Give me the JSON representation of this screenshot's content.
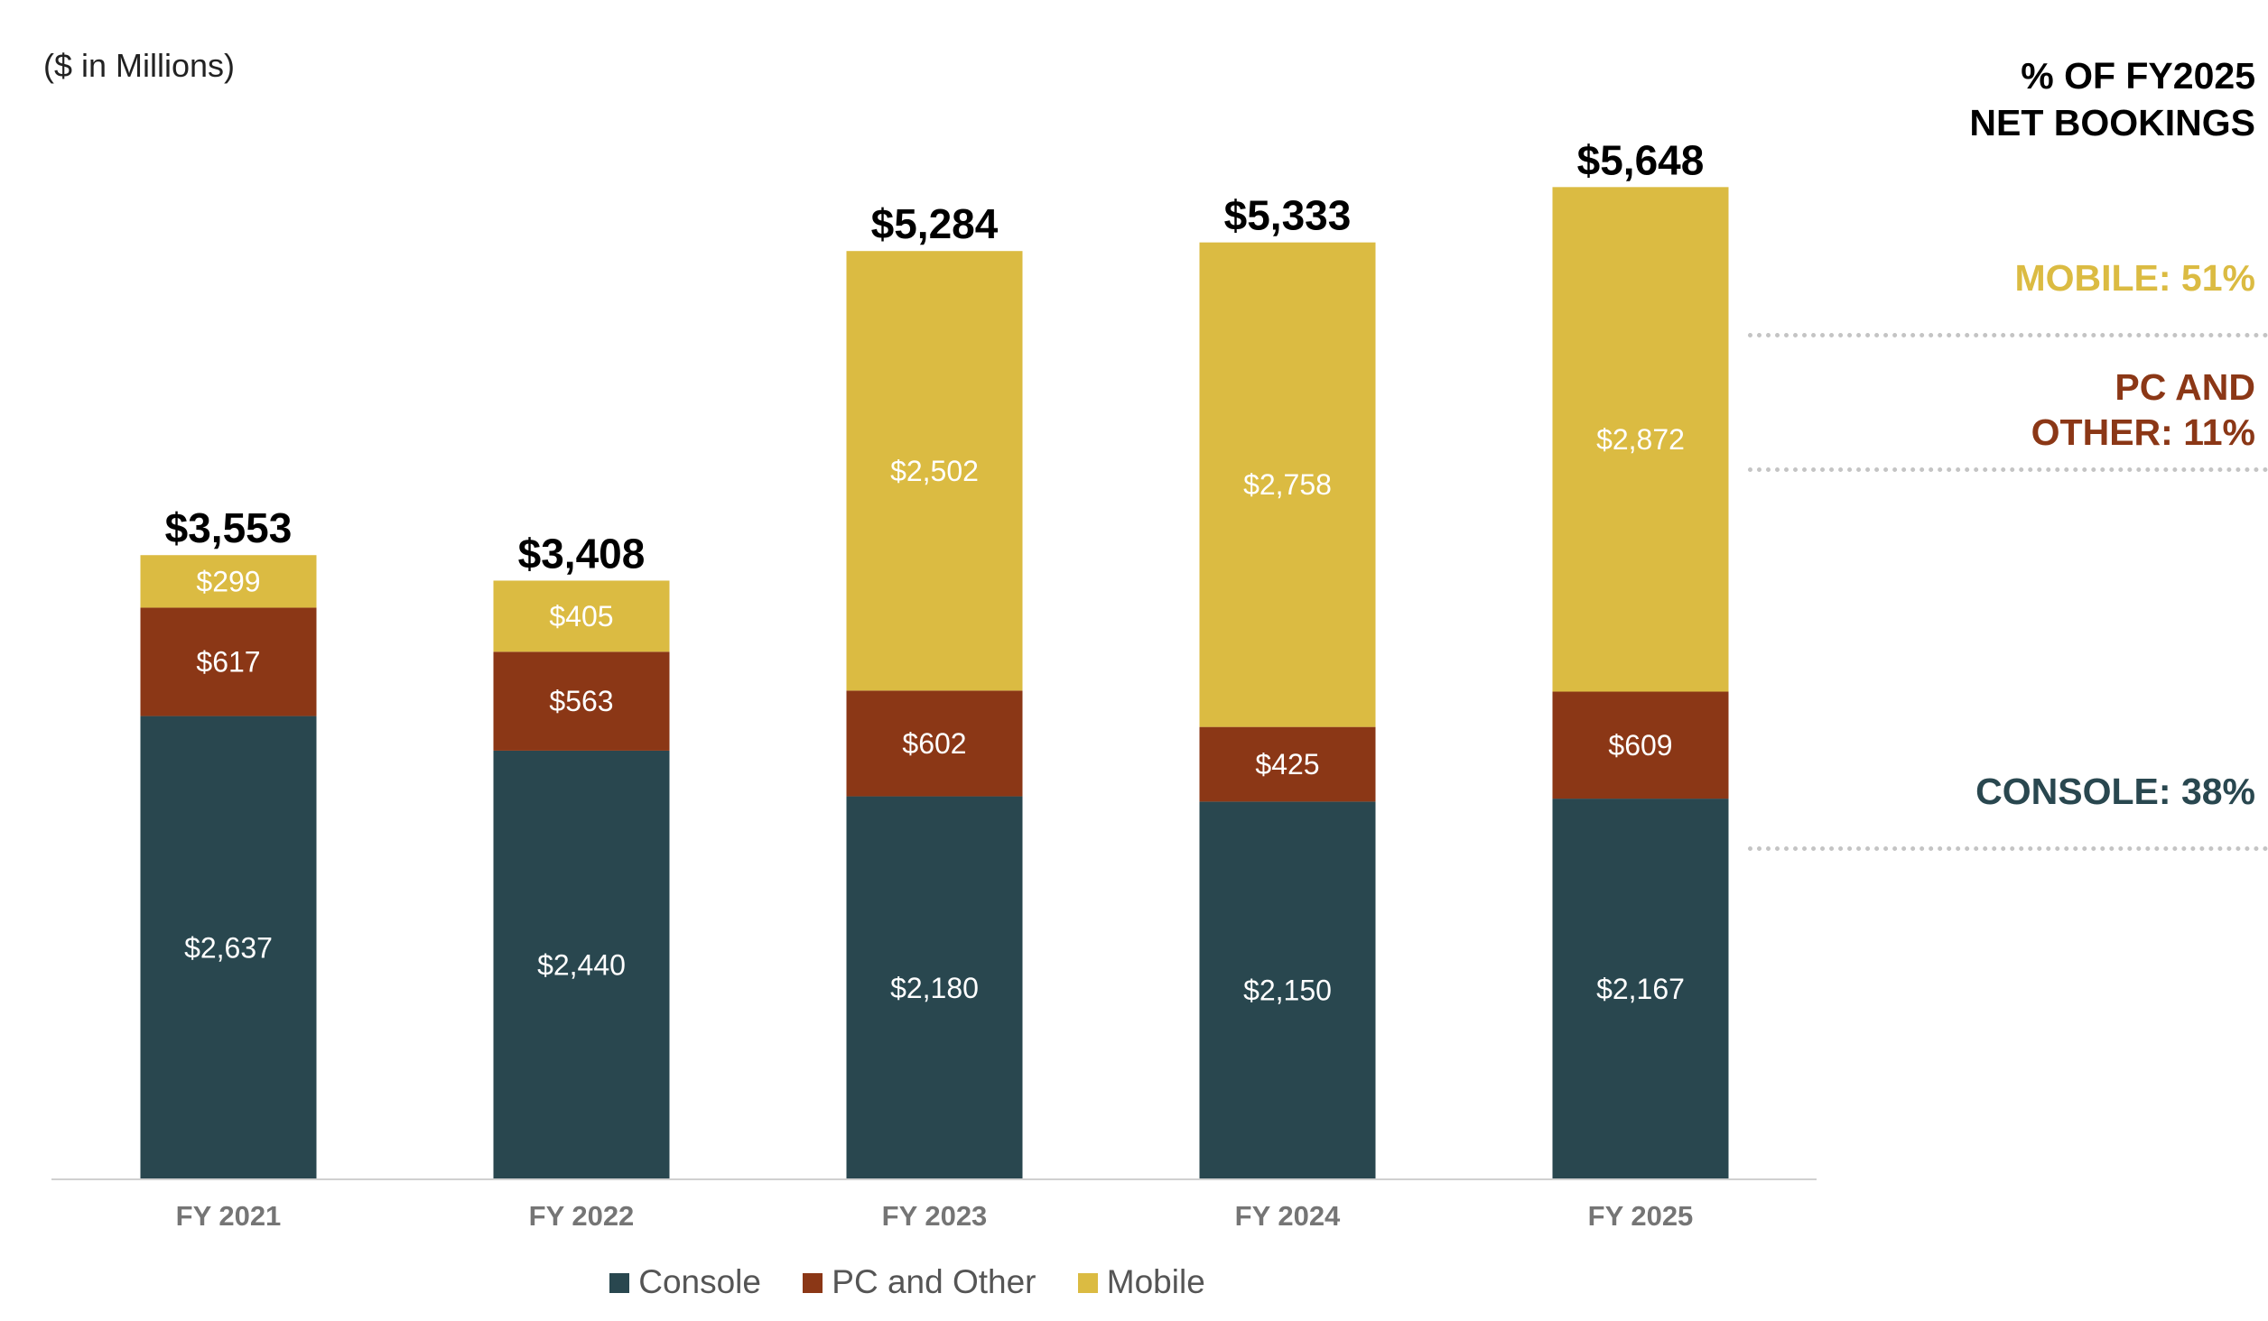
{
  "unit_label": "($ in Millions)",
  "side_panel": {
    "title_line1": "% OF FY2025",
    "title_line2": "NET BOOKINGS",
    "mobile_share": "MOBILE: 51%",
    "pc_share_line1": "PC AND",
    "pc_share_line2": "OTHER: 11%",
    "console_share": "CONSOLE: 38%"
  },
  "colors": {
    "console": "#29474f",
    "pc_and_other": "#8b3716",
    "mobile": "#dbbb42",
    "axis": "#d0d0d0",
    "tick_label": "#757575",
    "total_label": "#000000",
    "segment_label": "#ffffff"
  },
  "legend": [
    {
      "label": "Console",
      "color_key": "console"
    },
    {
      "label": "PC and Other",
      "color_key": "pc_and_other"
    },
    {
      "label": "Mobile",
      "color_key": "mobile"
    }
  ],
  "chart_data": {
    "type": "bar",
    "stacked": true,
    "title": "",
    "xlabel": "",
    "ylabel": "($ in Millions)",
    "ylim": [
      0,
      6000
    ],
    "grid": false,
    "legend_position": "bottom",
    "categories": [
      "FY 2021",
      "FY 2022",
      "FY 2023",
      "FY 2024",
      "FY 2025"
    ],
    "series": [
      {
        "name": "Console",
        "key": "console",
        "values": [
          2637,
          2440,
          2180,
          2150,
          2167
        ],
        "labels": [
          "$2,637",
          "$2,440",
          "$2,180",
          "$2,150",
          "$2,167"
        ]
      },
      {
        "name": "PC and Other",
        "key": "pc_and_other",
        "values": [
          617,
          563,
          602,
          425,
          609
        ],
        "labels": [
          "$617",
          "$563",
          "$602",
          "$425",
          "$609"
        ]
      },
      {
        "name": "Mobile",
        "key": "mobile",
        "values": [
          299,
          405,
          2502,
          2758,
          2872
        ],
        "labels": [
          "$299",
          "$405",
          "$2,502",
          "$2,758",
          "$2,872"
        ]
      }
    ],
    "totals": [
      3553,
      3408,
      5284,
      5333,
      5648
    ],
    "total_labels": [
      "$3,553",
      "$3,408",
      "$5,284",
      "$5,333",
      "$5,648"
    ]
  }
}
